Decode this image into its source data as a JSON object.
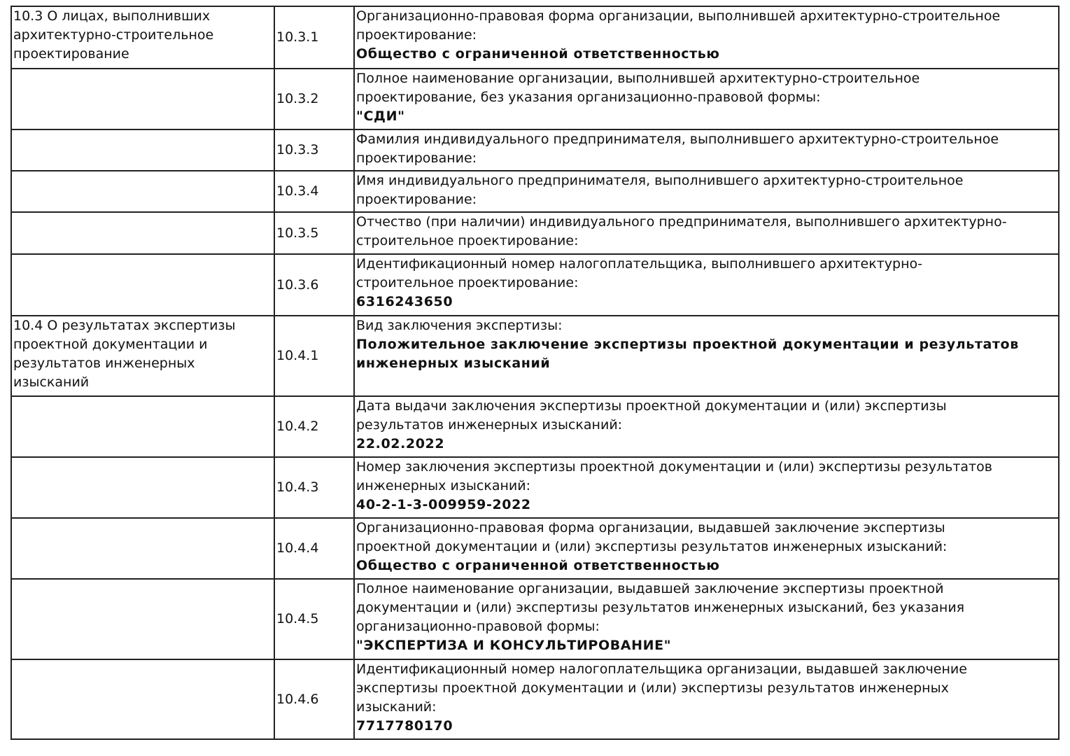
{
  "rows": [
    {
      "section": "10.3 О лицах, выполнивших\nархитектурно-строительное\nпроектирование",
      "num": "10.3.1",
      "label": "Организационно-правовая форма организации, выполнившей архитектурно-строительное\nпроектирование:",
      "value": "Общество с ограниченной ответственностью"
    },
    {
      "section": "",
      "num": "10.3.2",
      "label": "Полное наименование организации, выполнившей архитектурно-строительное\nпроектирование, без указания организационно-правовой формы:",
      "value": "\"СДИ\""
    },
    {
      "section": "",
      "num": "10.3.3",
      "label": "Фамилия индивидуального предпринимателя, выполнившего архитектурно-строительное\nпроектирование:",
      "value": ""
    },
    {
      "section": "",
      "num": "10.3.4",
      "label": "Имя индивидуального предпринимателя, выполнившего архитектурно-строительное\nпроектирование:",
      "value": ""
    },
    {
      "section": "",
      "num": "10.3.5",
      "label": "Отчество (при наличии) индивидуального предпринимателя, выполнившего архитектурно-\nстроительное проектирование:",
      "value": ""
    },
    {
      "section": "",
      "num": "10.3.6",
      "label": "Идентификационный номер налогоплательщика, выполнившего архитектурно-\nстроительное проектирование:",
      "value": "6316243650"
    },
    {
      "section": "10.4 О результатах экспертизы\nпроектной документации и\nрезультатов инженерных\nизысканий",
      "num": "10.4.1",
      "label": "Вид заключения экспертизы:",
      "value": "Положительное заключение экспертизы проектной документации и результатов\nинженерных изысканий"
    },
    {
      "section": "",
      "num": "10.4.2",
      "label": "Дата выдачи заключения экспертизы проектной документации и (или) экспертизы\nрезультатов инженерных изысканий:",
      "value": "22.02.2022"
    },
    {
      "section": "",
      "num": "10.4.3",
      "label": "Номер заключения экспертизы проектной документации и (или) экспертизы результатов\nинженерных изысканий:",
      "value": "40-2-1-3-009959-2022"
    },
    {
      "section": "",
      "num": "10.4.4",
      "label": "Организационно-правовая форма организации, выдавшей заключение экспертизы\nпроектной документации и (или) экспертизы результатов инженерных изысканий:",
      "value": "Общество с ограниченной ответственностью"
    },
    {
      "section": "",
      "num": "10.4.5",
      "label": "Полное наименование организации, выдавшей заключение экспертизы проектной\nдокументации и (или) экспертизы результатов инженерных изысканий, без указания\nорганизационно-правовой формы:",
      "value": "\"ЭКСПЕРТИЗА И КОНСУЛЬТИРОВАНИЕ\""
    },
    {
      "section": "",
      "num": "10.4.6",
      "label": "Идентификационный номер налогоплательщика организации, выдавшей заключение\nэкспертизы проектной документации и (или) экспертизы результатов инженерных\nизысканий:",
      "value": "7717780170"
    }
  ]
}
